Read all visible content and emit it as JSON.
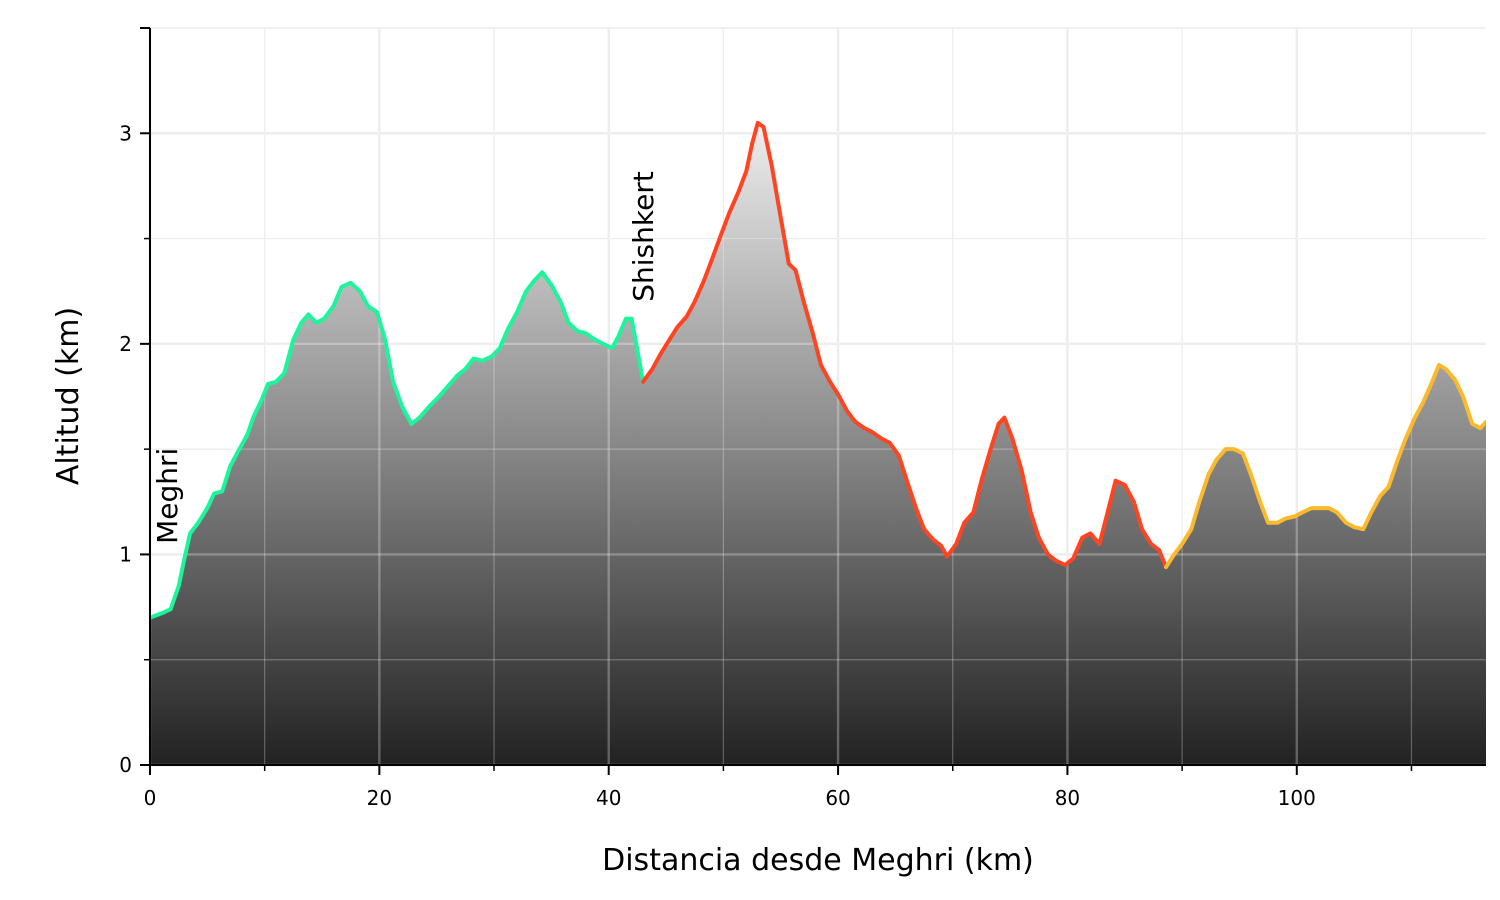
{
  "chart_data": {
    "type": "area",
    "title": "",
    "xlabel": "Distancia desde Meghri (km)",
    "ylabel": "Altitud (km)",
    "xlim": [
      0,
      116.5
    ],
    "ylim": [
      0,
      3.5
    ],
    "x_ticks": [
      0,
      20,
      40,
      60,
      80,
      100
    ],
    "y_ticks": [
      0,
      1,
      2,
      3
    ],
    "grid": true,
    "fill": "vertical gradient, light gray at top to near-black at bottom",
    "annotations": [
      {
        "text": "Meghri",
        "x": 1.5,
        "y": 1.05
      },
      {
        "text": "Shishkert",
        "x": 43,
        "y": 2.2
      }
    ],
    "series": [
      {
        "color": "#1DF59C",
        "points": [
          [
            0,
            0.7
          ],
          [
            1,
            0.72
          ],
          [
            1.8,
            0.74
          ],
          [
            2.5,
            0.85
          ],
          [
            3,
            0.98
          ],
          [
            3.5,
            1.1
          ],
          [
            4.2,
            1.15
          ],
          [
            5,
            1.22
          ],
          [
            5.6,
            1.29
          ],
          [
            6.3,
            1.3
          ],
          [
            7,
            1.42
          ],
          [
            7.8,
            1.5
          ],
          [
            8.5,
            1.57
          ],
          [
            9,
            1.65
          ],
          [
            9.7,
            1.73
          ],
          [
            10.3,
            1.81
          ],
          [
            11,
            1.82
          ],
          [
            11.7,
            1.86
          ],
          [
            12.5,
            2.02
          ],
          [
            13.2,
            2.1
          ],
          [
            13.8,
            2.14
          ],
          [
            14.5,
            2.1
          ],
          [
            15.2,
            2.12
          ],
          [
            16,
            2.18
          ],
          [
            16.7,
            2.27
          ],
          [
            17.5,
            2.29
          ],
          [
            18.3,
            2.25
          ],
          [
            19,
            2.18
          ],
          [
            19.8,
            2.15
          ],
          [
            20.5,
            2.02
          ],
          [
            21.2,
            1.82
          ],
          [
            22,
            1.7
          ],
          [
            22.8,
            1.62
          ],
          [
            23.5,
            1.65
          ],
          [
            24.3,
            1.7
          ],
          [
            25.2,
            1.75
          ],
          [
            26,
            1.8
          ],
          [
            26.8,
            1.85
          ],
          [
            27.5,
            1.88
          ],
          [
            28.2,
            1.93
          ],
          [
            29,
            1.92
          ],
          [
            29.8,
            1.94
          ],
          [
            30.5,
            1.98
          ],
          [
            31.2,
            2.07
          ],
          [
            32,
            2.15
          ],
          [
            32.8,
            2.25
          ],
          [
            33.5,
            2.3
          ],
          [
            34.2,
            2.34
          ],
          [
            35,
            2.28
          ],
          [
            35.8,
            2.2
          ],
          [
            36.5,
            2.1
          ],
          [
            37.3,
            2.06
          ],
          [
            38,
            2.05
          ],
          [
            38.8,
            2.02
          ],
          [
            39.5,
            2.0
          ],
          [
            40.3,
            1.98
          ],
          [
            40.8,
            2.03
          ],
          [
            41.5,
            2.12
          ],
          [
            42,
            2.12
          ],
          [
            42.4,
            2.0
          ],
          [
            43,
            1.82
          ]
        ]
      },
      {
        "color": "#FF4422",
        "points": [
          [
            43,
            1.82
          ],
          [
            43.8,
            1.88
          ],
          [
            44.5,
            1.95
          ],
          [
            45.3,
            2.02
          ],
          [
            46,
            2.08
          ],
          [
            46.8,
            2.13
          ],
          [
            47.5,
            2.2
          ],
          [
            48.3,
            2.3
          ],
          [
            49,
            2.4
          ],
          [
            49.8,
            2.52
          ],
          [
            50.5,
            2.62
          ],
          [
            51.3,
            2.72
          ],
          [
            52,
            2.82
          ],
          [
            52.5,
            2.95
          ],
          [
            53,
            3.05
          ],
          [
            53.5,
            3.03
          ],
          [
            54.2,
            2.85
          ],
          [
            55,
            2.6
          ],
          [
            55.7,
            2.38
          ],
          [
            56.3,
            2.35
          ],
          [
            57,
            2.2
          ],
          [
            57.8,
            2.05
          ],
          [
            58.5,
            1.9
          ],
          [
            59.3,
            1.82
          ],
          [
            60,
            1.76
          ],
          [
            60.8,
            1.68
          ],
          [
            61.5,
            1.63
          ],
          [
            62.3,
            1.6
          ],
          [
            63,
            1.58
          ],
          [
            63.8,
            1.55
          ],
          [
            64.5,
            1.53
          ],
          [
            65.3,
            1.47
          ],
          [
            66,
            1.35
          ],
          [
            66.8,
            1.22
          ],
          [
            67.5,
            1.12
          ],
          [
            68.3,
            1.07
          ],
          [
            69,
            1.04
          ],
          [
            69.5,
            0.99
          ],
          [
            70.3,
            1.05
          ],
          [
            71,
            1.15
          ],
          [
            71.8,
            1.2
          ],
          [
            72.5,
            1.35
          ],
          [
            73.3,
            1.5
          ],
          [
            74,
            1.62
          ],
          [
            74.5,
            1.65
          ],
          [
            75.2,
            1.55
          ],
          [
            76,
            1.4
          ],
          [
            76.8,
            1.2
          ],
          [
            77.5,
            1.08
          ],
          [
            78.3,
            1.0
          ],
          [
            79,
            0.97
          ],
          [
            79.8,
            0.95
          ],
          [
            80.5,
            0.98
          ],
          [
            81.3,
            1.08
          ],
          [
            82,
            1.1
          ],
          [
            82.8,
            1.05
          ],
          [
            83.5,
            1.2
          ],
          [
            84.2,
            1.35
          ],
          [
            85,
            1.33
          ],
          [
            85.8,
            1.25
          ],
          [
            86.5,
            1.12
          ],
          [
            87.3,
            1.05
          ],
          [
            88,
            1.02
          ],
          [
            88.6,
            0.94
          ]
        ]
      },
      {
        "color": "#FBBA2E",
        "points": [
          [
            88.6,
            0.94
          ],
          [
            89.3,
            1.0
          ],
          [
            90,
            1.05
          ],
          [
            90.8,
            1.12
          ],
          [
            91.5,
            1.25
          ],
          [
            92.3,
            1.38
          ],
          [
            93,
            1.45
          ],
          [
            93.8,
            1.5
          ],
          [
            94.5,
            1.5
          ],
          [
            95.3,
            1.48
          ],
          [
            96,
            1.38
          ],
          [
            96.8,
            1.25
          ],
          [
            97.5,
            1.15
          ],
          [
            98.3,
            1.15
          ],
          [
            99,
            1.17
          ],
          [
            99.8,
            1.18
          ],
          [
            100.5,
            1.2
          ],
          [
            101.3,
            1.22
          ],
          [
            102,
            1.22
          ],
          [
            102.8,
            1.22
          ],
          [
            103.5,
            1.2
          ],
          [
            104.3,
            1.15
          ],
          [
            105,
            1.13
          ],
          [
            105.8,
            1.12
          ],
          [
            106.5,
            1.2
          ],
          [
            107.3,
            1.28
          ],
          [
            108,
            1.32
          ],
          [
            108.8,
            1.45
          ],
          [
            109.5,
            1.55
          ],
          [
            110.3,
            1.65
          ],
          [
            111,
            1.72
          ],
          [
            111.8,
            1.82
          ],
          [
            112.4,
            1.9
          ],
          [
            113,
            1.88
          ],
          [
            113.8,
            1.83
          ],
          [
            114.5,
            1.75
          ],
          [
            115.3,
            1.62
          ],
          [
            116,
            1.6
          ],
          [
            116.5,
            1.63
          ]
        ]
      }
    ]
  }
}
